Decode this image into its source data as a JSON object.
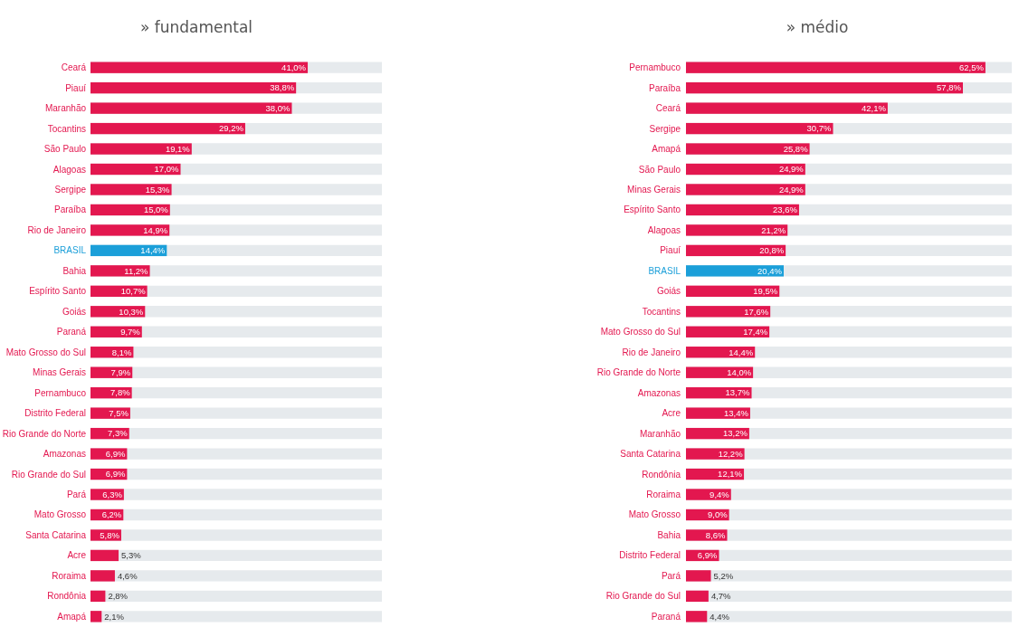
{
  "chart_data": [
    {
      "type": "bar",
      "orientation": "horizontal",
      "title": "» fundamental",
      "xlim": [
        0,
        55
      ],
      "categories": [
        "Ceará",
        "Piauí",
        "Maranhão",
        "Tocantins",
        "São Paulo",
        "Alagoas",
        "Sergipe",
        "Paraíba",
        "Rio de Janeiro",
        "BRASIL",
        "Bahia",
        "Espírito Santo",
        "Goiás",
        "Paraná",
        "Mato Grosso do Sul",
        "Minas Gerais",
        "Pernambuco",
        "Distrito Federal",
        "Rio Grande do Norte",
        "Amazonas",
        "Rio Grande do Sul",
        "Pará",
        "Mato Grosso",
        "Santa Catarina",
        "Acre",
        "Roraima",
        "Rondônia",
        "Amapá"
      ],
      "values": [
        41.0,
        38.8,
        38.0,
        29.2,
        19.1,
        17.0,
        15.3,
        15.0,
        14.9,
        14.4,
        11.2,
        10.7,
        10.3,
        9.7,
        8.1,
        7.9,
        7.8,
        7.5,
        7.3,
        6.9,
        6.9,
        6.3,
        6.2,
        5.8,
        5.3,
        4.6,
        2.8,
        2.1
      ],
      "value_labels": [
        "41,0%",
        "38,8%",
        "38,0%",
        "29,2%",
        "19,1%",
        "17,0%",
        "15,3%",
        "15,0%",
        "14,9%",
        "14,4%",
        "11,2%",
        "10,7%",
        "10,3%",
        "9,7%",
        "8,1%",
        "7,9%",
        "7,8%",
        "7,5%",
        "7,3%",
        "6,9%",
        "6,9%",
        "6,3%",
        "6,2%",
        "5,8%",
        "5,3%",
        "4,6%",
        "2,8%",
        "2,1%"
      ],
      "colors": [
        "#e3174f",
        "#e3174f",
        "#e3174f",
        "#e3174f",
        "#e3174f",
        "#e3174f",
        "#e3174f",
        "#e3174f",
        "#e3174f",
        "#1b9fd9",
        "#e3174f",
        "#e3174f",
        "#e3174f",
        "#e3174f",
        "#e3174f",
        "#e3174f",
        "#e3174f",
        "#e3174f",
        "#e3174f",
        "#e3174f",
        "#e3174f",
        "#e3174f",
        "#e3174f",
        "#e3174f",
        "#e3174f",
        "#e3174f",
        "#e3174f",
        "#e3174f"
      ]
    },
    {
      "type": "bar",
      "orientation": "horizontal",
      "title": "» médio",
      "xlim": [
        0,
        68
      ],
      "categories": [
        "Pernambuco",
        "Paraíba",
        "Ceará",
        "Sergipe",
        "Amapá",
        "São Paulo",
        "Minas Gerais",
        "Espírito Santo",
        "Alagoas",
        "Piauí",
        "BRASIL",
        "Goiás",
        "Tocantins",
        "Mato Grosso do Sul",
        "Rio de Janeiro",
        "Rio Grande do Norte",
        "Amazonas",
        "Acre",
        "Maranhão",
        "Santa Catarina",
        "Rondônia",
        "Roraima",
        "Mato Grosso",
        "Bahia",
        "Distrito Federal",
        "Pará",
        "Rio Grande do Sul",
        "Paraná"
      ],
      "values": [
        62.5,
        57.8,
        42.1,
        30.7,
        25.8,
        24.9,
        24.9,
        23.6,
        21.2,
        20.8,
        20.4,
        19.5,
        17.6,
        17.4,
        14.4,
        14.0,
        13.7,
        13.4,
        13.2,
        12.2,
        12.1,
        9.4,
        9.0,
        8.6,
        6.9,
        5.2,
        4.7,
        4.4
      ],
      "value_labels": [
        "62,5%",
        "57,8%",
        "42,1%",
        "30,7%",
        "25,8%",
        "24,9%",
        "24,9%",
        "23,6%",
        "21,2%",
        "20,8%",
        "20,4%",
        "19,5%",
        "17,6%",
        "17,4%",
        "14,4%",
        "14,0%",
        "13,7%",
        "13,4%",
        "13,2%",
        "12,2%",
        "12,1%",
        "9,4%",
        "9,0%",
        "8,6%",
        "6,9%",
        "5,2%",
        "4,7%",
        "4,4%"
      ],
      "colors": [
        "#e3174f",
        "#e3174f",
        "#e3174f",
        "#e3174f",
        "#e3174f",
        "#e3174f",
        "#e3174f",
        "#e3174f",
        "#e3174f",
        "#e3174f",
        "#1b9fd9",
        "#e3174f",
        "#e3174f",
        "#e3174f",
        "#e3174f",
        "#e3174f",
        "#e3174f",
        "#e3174f",
        "#e3174f",
        "#e3174f",
        "#e3174f",
        "#e3174f",
        "#e3174f",
        "#e3174f",
        "#e3174f",
        "#e3174f",
        "#e3174f",
        "#e3174f"
      ]
    }
  ]
}
